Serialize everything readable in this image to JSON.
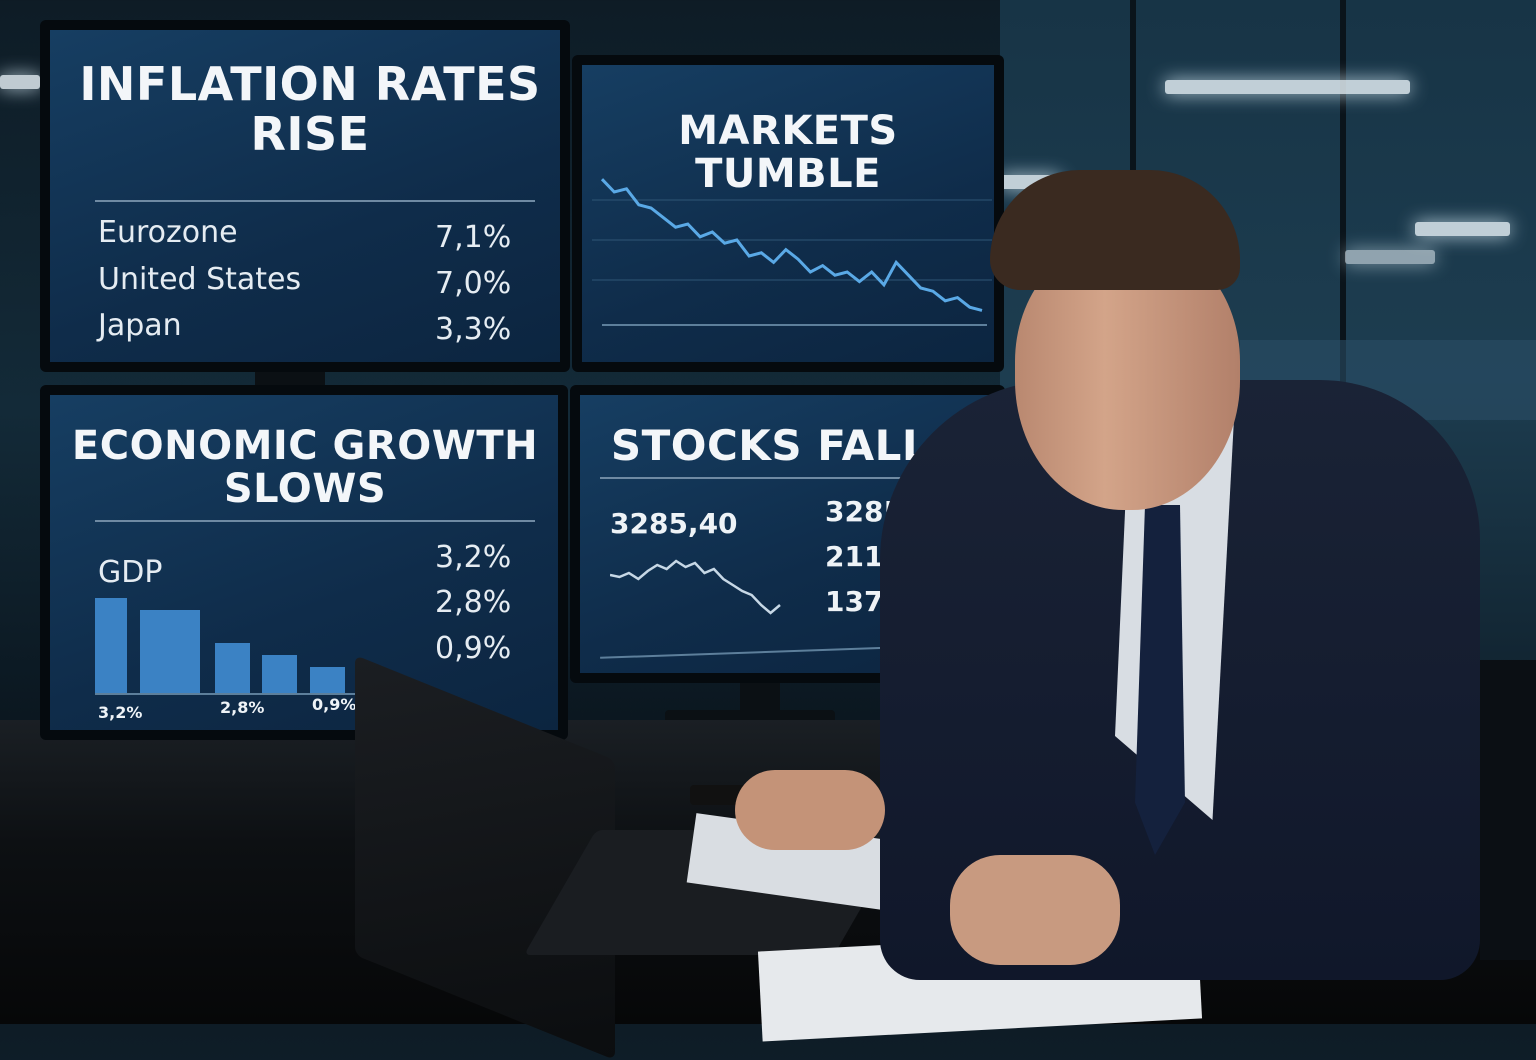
{
  "screens": {
    "inflation": {
      "headline": "INFLATION RATES RISE",
      "rows": [
        {
          "label": "Eurozone",
          "value": "7,1%"
        },
        {
          "label": "United States",
          "value": "7,0%"
        },
        {
          "label": "Japan",
          "value": "3,3%"
        }
      ]
    },
    "markets": {
      "headline": "MARKETS TUMBLE",
      "line_color": "#5aa9e6",
      "trend": [
        88,
        80,
        82,
        72,
        70,
        64,
        58,
        60,
        52,
        55,
        48,
        50,
        40,
        42,
        36,
        44,
        38,
        30,
        34,
        28,
        30,
        24,
        30,
        22,
        36,
        28,
        20,
        18,
        12,
        14,
        8,
        6
      ]
    },
    "growth": {
      "headline": "ECONOMIC GROWTH SLOWS",
      "gdp_label": "GDP",
      "values": [
        "3,2%",
        "2,8%",
        "0,9%"
      ],
      "bar_color": "#3b82c4",
      "bars": [
        3.2,
        2.8,
        1.7,
        1.3,
        0.9
      ],
      "bar_labels": [
        "3,2%",
        "2,8%",
        "0,9%"
      ]
    },
    "stocks": {
      "headline": "STOCKS FALL",
      "main_value": "3285,40",
      "tickers": [
        "3285,40",
        "2119,78",
        "1371592"
      ],
      "down_color": "#e0312b",
      "trend": [
        60,
        58,
        62,
        56,
        64,
        70,
        66,
        74,
        68,
        72,
        62,
        66,
        56,
        50,
        44,
        40,
        30,
        22,
        30
      ]
    }
  }
}
